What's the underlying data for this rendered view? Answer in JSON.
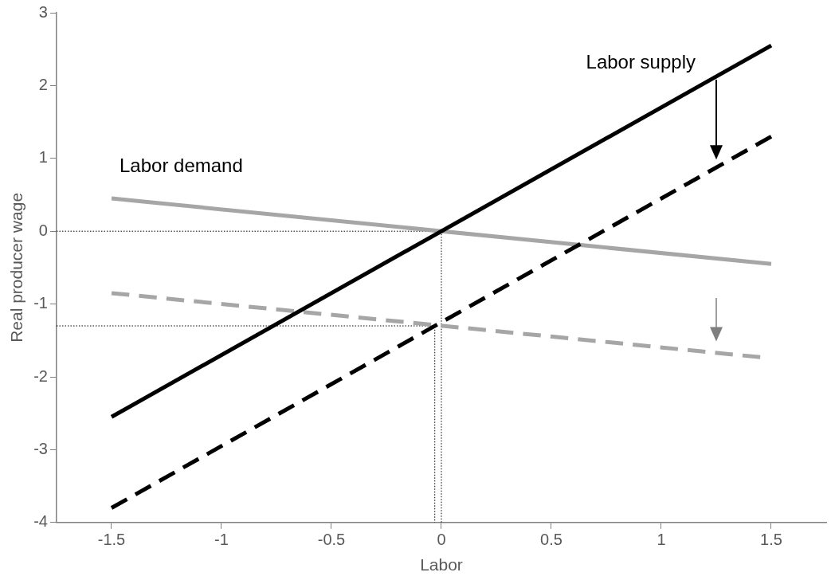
{
  "chart_data": {
    "type": "line",
    "xlabel": "Labor",
    "ylabel": "Real producer wage",
    "xlim": [
      -1.75,
      1.75
    ],
    "xticks": [
      -1.5,
      -1,
      -0.5,
      0,
      0.5,
      1,
      1.5
    ],
    "ylim": [
      -4,
      3
    ],
    "yticks": [
      -4,
      -3,
      -2,
      -1,
      0,
      1,
      2,
      3
    ],
    "grid": false,
    "legend": false,
    "marker": "none",
    "series": [
      {
        "name": "Labor supply",
        "color": "#000000",
        "line_style": "solid",
        "x": [
          -1.5,
          1.5
        ],
        "values": [
          -2.55,
          2.55
        ]
      },
      {
        "color": "#000000",
        "line_style": "dashed",
        "x": [
          -1.5,
          1.5
        ],
        "values": [
          -3.8,
          1.3
        ]
      },
      {
        "name": "Labor demand",
        "color": "#a6a6a6",
        "line_style": "solid",
        "x": [
          -1.5,
          1.5
        ],
        "values": [
          0.45,
          -0.45
        ]
      },
      {
        "color": "#a6a6a6",
        "line_style": "dashed",
        "x": [
          -1.5,
          1.45
        ],
        "values": [
          -0.85,
          -1.73
        ]
      },
      {
        "color": "#000000",
        "line_style": "dotted",
        "x": [
          -1.75,
          0,
          0
        ],
        "values": [
          0,
          0,
          -4
        ]
      },
      {
        "color": "#000000",
        "line_style": "dotted",
        "x": [
          -1.75,
          -0.03,
          -0.03
        ],
        "values": [
          -1.3,
          -1.3,
          -4
        ]
      }
    ]
  }
}
